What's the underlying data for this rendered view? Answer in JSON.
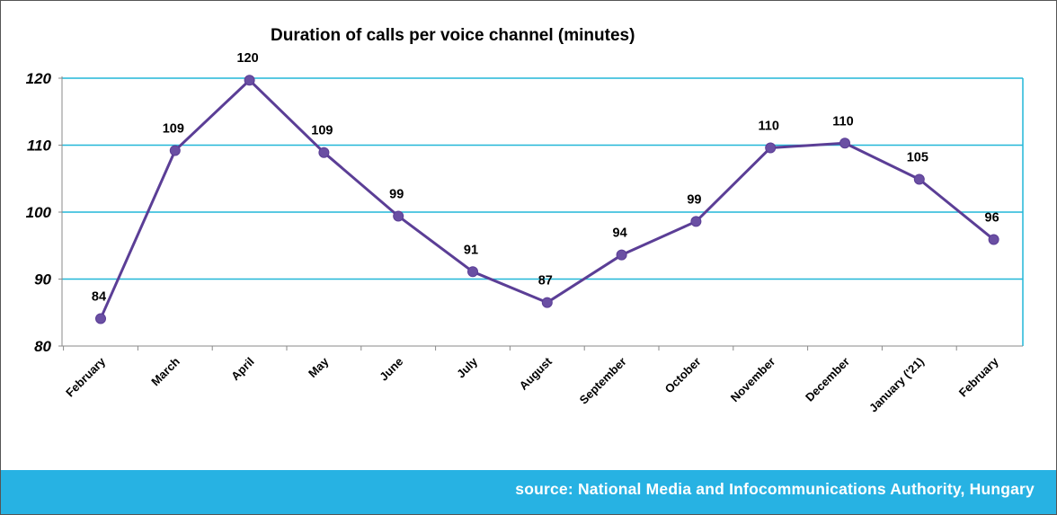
{
  "chart_data": {
    "type": "line",
    "title": "Duration of calls per voice channel (minutes)",
    "xlabel": "",
    "ylabel": "",
    "categories": [
      "February",
      "March",
      "April",
      "May",
      "June",
      "July",
      "August",
      "September",
      "October",
      "November",
      "December",
      "January ('21)",
      "February"
    ],
    "series": [
      {
        "values": [
          84.1,
          109.2,
          119.7,
          108.9,
          99.4,
          91.1,
          86.5,
          93.6,
          98.6,
          109.6,
          110.3,
          104.9,
          95.9
        ],
        "labels": [
          "84",
          "109",
          "120",
          "109",
          "99",
          "91",
          "87",
          "94",
          "99",
          "110",
          "110",
          "105",
          "96"
        ]
      }
    ],
    "ylim": [
      80,
      120
    ],
    "yticks": [
      "80",
      "90",
      "100",
      "110",
      "120"
    ],
    "grid": true,
    "legend": "none"
  },
  "colors": {
    "line": "#5B3E96",
    "marker": "#6A4FA3",
    "grid": "#22B7D8",
    "footer": "#27B2E3",
    "footer_text": "#FFFFFF"
  },
  "footer": {
    "source": "source: National Media and Infocommunications Authority, Hungary"
  }
}
